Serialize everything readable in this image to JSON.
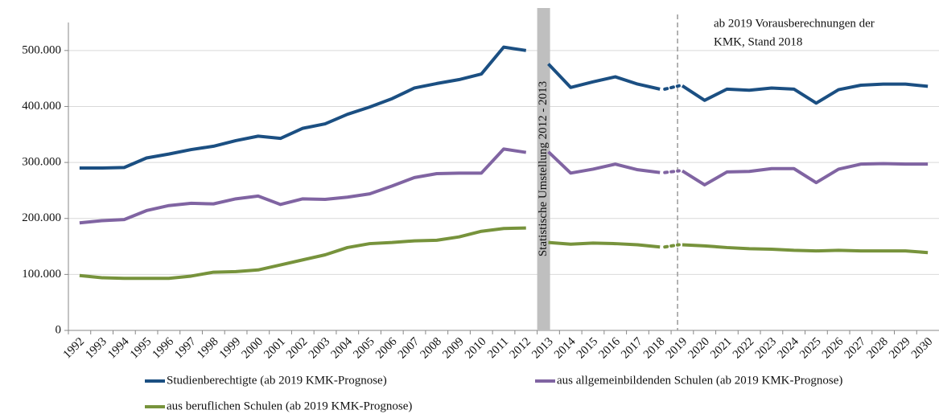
{
  "chart_data": {
    "type": "line",
    "categories": [
      "1992",
      "1993",
      "1994",
      "1995",
      "1996",
      "1997",
      "1998",
      "1999",
      "2000",
      "2001",
      "2002",
      "2003",
      "2004",
      "2005",
      "2006",
      "2007",
      "2008",
      "2009",
      "2010",
      "2011",
      "2012",
      "2013",
      "2014",
      "2015",
      "2016",
      "2017",
      "2018",
      "2019",
      "2020",
      "2021",
      "2022",
      "2023",
      "2024",
      "2025",
      "2026",
      "2027",
      "2028",
      "2029",
      "2030"
    ],
    "series": [
      {
        "name": "Studienberechtigte (ab 2019 KMK-Prognose)",
        "color": "#1b4f82",
        "values": [
          290000,
          290000,
          291000,
          308000,
          315000,
          323000,
          329000,
          339000,
          347000,
          343000,
          361000,
          369000,
          386000,
          399000,
          414000,
          433000,
          441000,
          448000,
          458000,
          506000,
          500000,
          476000,
          434000,
          444000,
          453000,
          440000,
          431000,
          437000,
          411000,
          431000,
          429000,
          433000,
          431000,
          406000,
          430000,
          438000,
          440000,
          440000,
          436000
        ]
      },
      {
        "name": "aus allgemeinbildenden Schulen (ab 2019 KMK-Prognose)",
        "color": "#8064a2",
        "values": [
          192000,
          196000,
          198000,
          214000,
          223000,
          227000,
          226000,
          235000,
          240000,
          225000,
          235000,
          234000,
          238000,
          244000,
          258000,
          273000,
          280000,
          281000,
          281000,
          324000,
          318000,
          319000,
          281000,
          288000,
          297000,
          287000,
          282000,
          285000,
          260000,
          283000,
          284000,
          289000,
          289000,
          264000,
          288000,
          297000,
          298000,
          297000,
          297000
        ]
      },
      {
        "name": "aus beruflichen Schulen (ab 2019 KMK-Prognose)",
        "color": "#77933c",
        "values": [
          98000,
          94000,
          93000,
          93000,
          93000,
          97000,
          104000,
          105000,
          108000,
          117000,
          126000,
          135000,
          148000,
          155000,
          157000,
          160000,
          161000,
          167000,
          177000,
          182000,
          183000,
          157000,
          154000,
          156000,
          155000,
          153000,
          149000,
          153000,
          151000,
          148000,
          146000,
          145000,
          143000,
          142000,
          143000,
          142000,
          142000,
          142000,
          139000
        ]
      }
    ],
    "ylim": [
      0,
      550000
    ],
    "yticks": [
      0,
      {
        "value": 100000,
        "label": "100.000"
      },
      {
        "value": 200000,
        "label": "200.000"
      },
      {
        "value": 300000,
        "label": "300.000"
      },
      {
        "value": 400000,
        "label": "400.000"
      },
      {
        "value": 500000,
        "label": "500.000"
      }
    ],
    "grid": true,
    "gap_between": [
      "2012",
      "2013"
    ],
    "gap_label": "Statistische Umstellung 2012 - 2013",
    "projection_from": "2019",
    "projection_label": [
      "ab 2019 Vorausberechnungen der",
      "KMK, Stand 2018"
    ],
    "legend": "bottom"
  }
}
